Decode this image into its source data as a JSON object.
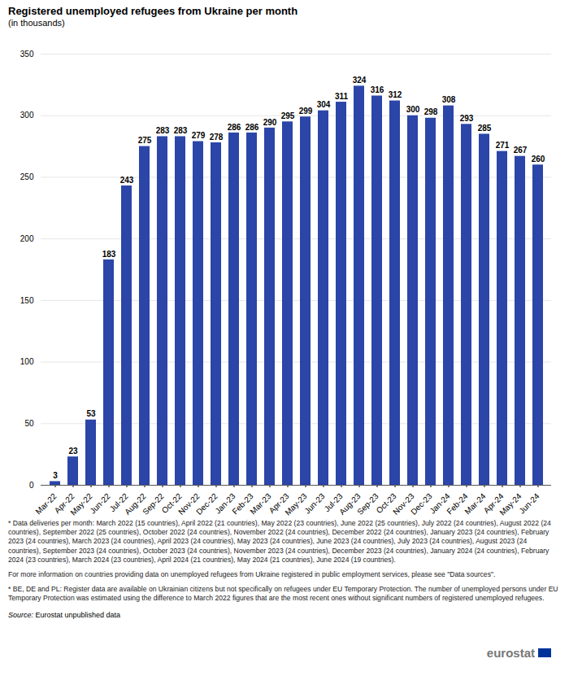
{
  "chart_data": {
    "type": "bar",
    "title": "Registered unemployed refugees from Ukraine per month",
    "subtitle": "(in thousands)",
    "categories": [
      "Mar-22",
      "Apr-22",
      "May-22",
      "Jun-22",
      "Jul-22",
      "Aug-22",
      "Sep-22",
      "Oct-22",
      "Nov-22",
      "Dec-22",
      "Jan-23",
      "Feb-23",
      "Mar-23",
      "Apr-23",
      "May-23",
      "Jun-23",
      "Jul-23",
      "Aug-23",
      "Sep-23",
      "Oct-23",
      "Nov-23",
      "Dec-23",
      "Jan-24",
      "Feb-24",
      "Mar-24",
      "Apr-24",
      "May-24",
      "Jun-24"
    ],
    "values": [
      3,
      23,
      53,
      183,
      243,
      275,
      283,
      283,
      279,
      278,
      286,
      286,
      290,
      295,
      299,
      304,
      311,
      324,
      316,
      312,
      300,
      298,
      308,
      293,
      285,
      271,
      267,
      260
    ],
    "color": "#2b45a8",
    "ylim": [
      0,
      350
    ],
    "yticks": [
      0,
      50,
      100,
      150,
      200,
      250,
      300,
      350
    ],
    "grid": true,
    "data_labels": true,
    "notes": [
      "* Data deliveries per month: March 2022 (15 countries), April 2022 (21 countries), May 2022 (23 countries), June 2022 (25 countries), July 2022 (24 countries), August 2022 (24 countries), September 2022 (25 countries), October 2022 (24 countries), November 2022 (24 countries), December 2022 (24 countries), January 2023 (24 countries), February 2023 (24 countries), March 2023 (24 countries), April 2023 (24 countries), May 2023 (24 countries), June 2023 (24 countries), July 2023 (24 countries), August 2023 (24 countries), September 2023 (24 countries), October 2023 (24 countries), November 2023 (24 countries), December 2023 (24 countries), January 2024 (24 countries), February 2024 (23 countries), March 2024 (23 countries), April 2024 (21 countries), May 2024 (21 countries), June 2024 (19 countries).",
      "For more information on countries providing data on unemployed refugees from Ukraine registered in public employment services, please see \"Data sources\".",
      "* BE, DE and PL: Register data are available on Ukrainian citizens but not specifically on refugees under EU Temporary Protection. The number of unemployed persons under EU Temporary Protection was estimated using the difference to March 2022 figures that are the most recent ones without significant numbers of registered unemployed refugees."
    ],
    "source_label": "Source:",
    "source": "Eurostat unpublished data",
    "logo": "eurostat"
  }
}
